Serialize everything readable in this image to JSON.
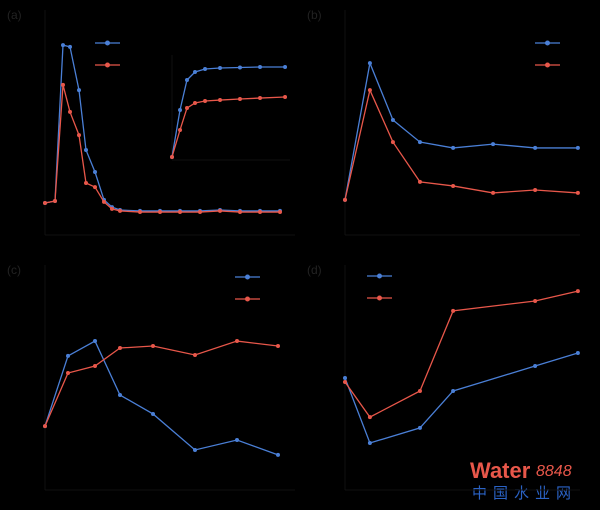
{
  "chart_data": [
    {
      "type": "line",
      "label": "(a)",
      "xlim": [
        0,
        100
      ],
      "ylim": [
        0,
        100
      ],
      "x": [
        0,
        4,
        7.2,
        10,
        13.6,
        16.4,
        20,
        23.6,
        26.8,
        30,
        38,
        46,
        54,
        62,
        70,
        78,
        86,
        94
      ],
      "series": [
        {
          "color": "#4a7fd6",
          "values": [
            14.2,
            15.1,
            84.4,
            83.6,
            64.4,
            37.8,
            28,
            15.6,
            12.4,
            11.1,
            10.7,
            10.7,
            10.7,
            10.7,
            11.1,
            10.7,
            10.7,
            10.7
          ]
        },
        {
          "color": "#e8574a",
          "values": [
            14.2,
            15.1,
            66.7,
            54.7,
            44.4,
            23.1,
            21.3,
            14.7,
            11.6,
            10.7,
            10.2,
            10.2,
            10.2,
            10.2,
            10.7,
            10.2,
            10.2,
            10.2
          ]
        }
      ]
    },
    {
      "type": "line",
      "xlim": [
        0,
        100
      ],
      "ylim": [
        0,
        100
      ],
      "x": [
        0,
        6.8,
        12.7,
        19.5,
        28,
        40.7,
        57.6,
        74.6,
        95.8
      ],
      "series": [
        {
          "color": "#4a7fd6",
          "values": [
            2.9,
            47.6,
            76.2,
            83.8,
            86.7,
            87.6,
            88.1,
            88.6,
            88.6
          ]
        },
        {
          "color": "#e8574a",
          "values": [
            2.9,
            28.6,
            49.5,
            54.3,
            56.2,
            57.1,
            58.1,
            59,
            60
          ]
        }
      ]
    },
    {
      "type": "line",
      "label": "(b)",
      "xlim": [
        0,
        100
      ],
      "ylim": [
        0,
        100
      ],
      "x": [
        0,
        10.6,
        20.4,
        31.9,
        46,
        63,
        80.9,
        99.1
      ],
      "series": [
        {
          "color": "#4a7fd6",
          "values": [
            15.6,
            76.4,
            51.1,
            41.3,
            38.7,
            40.4,
            38.7,
            38.7
          ]
        },
        {
          "color": "#e8574a",
          "values": [
            15.6,
            64.4,
            41.3,
            23.6,
            21.8,
            18.7,
            20,
            18.7
          ]
        }
      ]
    },
    {
      "type": "line",
      "label": "(c)",
      "xlim": [
        0,
        100
      ],
      "ylim": [
        0,
        100
      ],
      "x": [
        0,
        9.2,
        20,
        30,
        43.2,
        60,
        76.8,
        93.2
      ],
      "series": [
        {
          "color": "#4a7fd6",
          "values": [
            28.4,
            59.6,
            66.2,
            42.2,
            33.8,
            17.8,
            22.2,
            15.6
          ]
        },
        {
          "color": "#e8574a",
          "values": [
            28.4,
            52,
            55.1,
            63.1,
            64,
            60,
            66.2,
            64
          ]
        }
      ]
    },
    {
      "type": "line",
      "label": "(d)",
      "xlim": [
        0,
        100
      ],
      "ylim": [
        0,
        100
      ],
      "x": [
        0,
        10.6,
        31.9,
        46,
        80.9,
        99.1
      ],
      "series": [
        {
          "color": "#4a7fd6",
          "values": [
            49.8,
            20.9,
            27.6,
            44,
            55.1,
            60.9
          ]
        },
        {
          "color": "#e8574a",
          "values": [
            48,
            32.4,
            44,
            79.6,
            84,
            88.4
          ]
        }
      ]
    }
  ],
  "watermark": {
    "brand": "Water",
    "number": "8848",
    "site": "中国水业网"
  }
}
